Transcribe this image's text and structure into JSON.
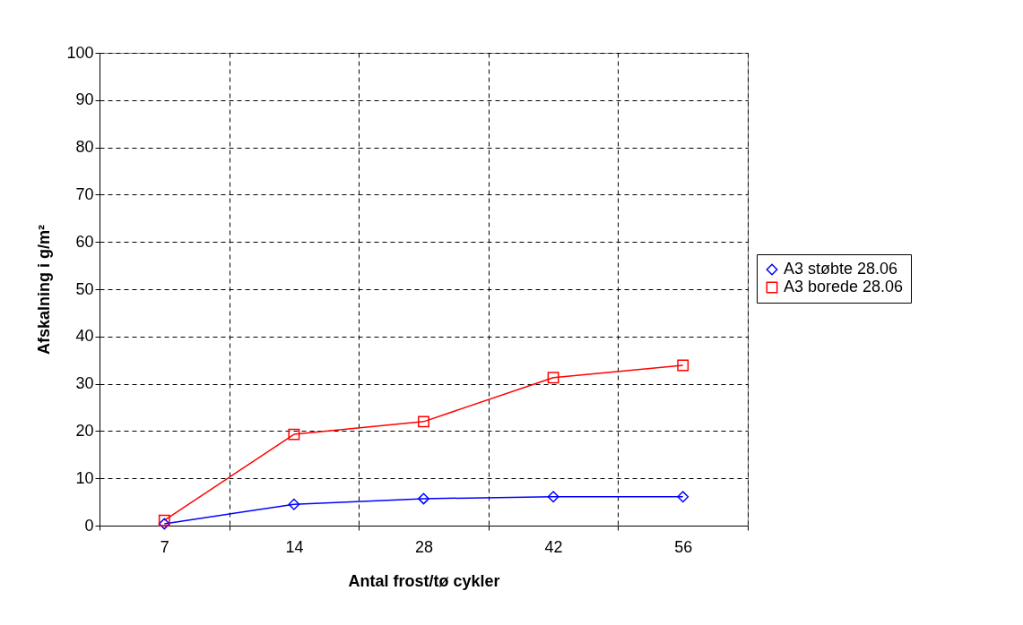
{
  "chart_data": {
    "type": "line",
    "xlabel": "Antal frost/tø cykler",
    "ylabel": "Afskalning i g/m²",
    "categories": [
      "7",
      "14",
      "28",
      "42",
      "56"
    ],
    "series": [
      {
        "name": "A3 støbte 28.06",
        "color": "#0000ff",
        "marker": "diamond",
        "values": [
          0.4,
          4.5,
          5.7,
          6.1,
          6.1
        ]
      },
      {
        "name": "A3 borede 28.06",
        "color": "#ff0000",
        "marker": "square",
        "values": [
          1.1,
          19.3,
          22.0,
          31.3,
          33.9
        ]
      }
    ],
    "ylim": [
      0,
      100
    ],
    "yticks": [
      0,
      10,
      20,
      30,
      40,
      50,
      60,
      70,
      80,
      90,
      100
    ],
    "grid": true,
    "legend": "right"
  }
}
